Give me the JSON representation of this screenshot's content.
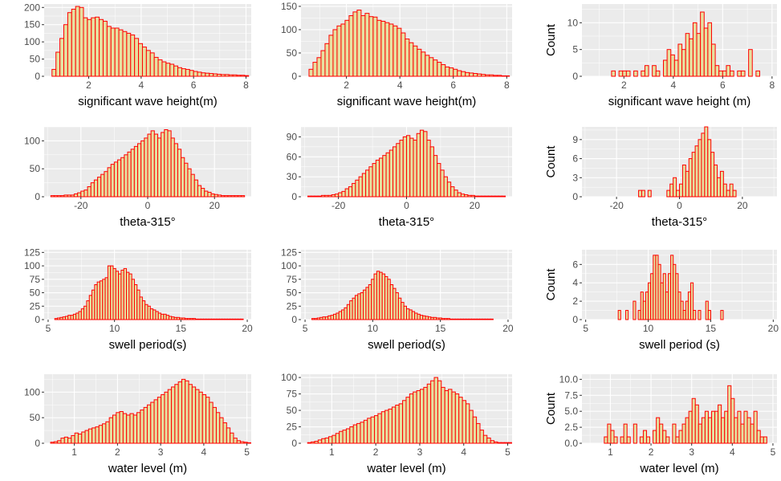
{
  "style": {
    "panel_bg": "#ebebeb",
    "grid_color": "#ffffff",
    "bar_fill": "#e6e0a0",
    "bar_stroke": "#ff0000",
    "tick_color": "#333333"
  },
  "chart_data": [
    {
      "type": "bar",
      "xlabel": "significant wave height(m)",
      "ylabel": "",
      "xlim": [
        0.3,
        8.2
      ],
      "ylim": [
        0,
        210
      ],
      "xticks": [
        2,
        4,
        6,
        8
      ],
      "yticks": [
        0,
        50,
        100,
        150,
        200
      ],
      "bin_start": 0.6,
      "bin_width": 0.15,
      "values": [
        20,
        70,
        110,
        150,
        185,
        195,
        203,
        200,
        170,
        165,
        170,
        172,
        165,
        160,
        145,
        140,
        140,
        135,
        130,
        125,
        120,
        110,
        95,
        85,
        75,
        68,
        55,
        48,
        42,
        38,
        35,
        30,
        25,
        22,
        20,
        17,
        14,
        12,
        10,
        9,
        8,
        7,
        6,
        5,
        5,
        4,
        4,
        3,
        3,
        2,
        2
      ]
    },
    {
      "type": "bar",
      "xlabel": "significant wave height(m)",
      "ylabel": "",
      "xlim": [
        0.3,
        8.2
      ],
      "ylim": [
        0,
        155
      ],
      "xticks": [
        2,
        4,
        6,
        8
      ],
      "yticks": [
        0,
        50,
        100,
        150
      ],
      "bin_start": 0.6,
      "bin_width": 0.15,
      "values": [
        15,
        30,
        40,
        55,
        70,
        88,
        100,
        108,
        112,
        120,
        130,
        138,
        142,
        130,
        135,
        128,
        127,
        120,
        118,
        115,
        112,
        108,
        103,
        93,
        80,
        72,
        65,
        58,
        52,
        45,
        40,
        35,
        30,
        25,
        20,
        18,
        15,
        12,
        10,
        8,
        7,
        6,
        5,
        4,
        3,
        3,
        2,
        2,
        1,
        1,
        1,
        1,
        1,
        1,
        1,
        1,
        1,
        1,
        1,
        1,
        1,
        1,
        4,
        1,
        1,
        1,
        1,
        1,
        1,
        1,
        1,
        1,
        1,
        1
      ]
    },
    {
      "type": "bar",
      "xlabel": "significant wave height (m)",
      "ylabel": "Count",
      "xlim": [
        0.3,
        8.2
      ],
      "ylim": [
        0,
        13.5
      ],
      "xticks": [
        2,
        4,
        6,
        8
      ],
      "yticks": [
        0,
        5,
        10
      ],
      "bin_start": 1.5,
      "bin_width": 0.15,
      "values": [
        1,
        0,
        1,
        1,
        1,
        0,
        1,
        0,
        1,
        2,
        0,
        2,
        1,
        0,
        3,
        5,
        4,
        3,
        6,
        5,
        8,
        7,
        10,
        8,
        12,
        9,
        10,
        6,
        2,
        1,
        1,
        2,
        1,
        0,
        1,
        1,
        0,
        5,
        0,
        1,
        0,
        0,
        0,
        0,
        0,
        0,
        0,
        0
      ]
    },
    {
      "type": "bar",
      "xlabel": "theta-315°",
      "ylabel": "",
      "xlim": [
        -31,
        31
      ],
      "ylim": [
        0,
        125
      ],
      "xticks": [
        -20,
        0,
        20
      ],
      "yticks": [
        0,
        50,
        100
      ],
      "bin_start": -29,
      "bin_width": 1,
      "values": [
        2,
        2,
        2,
        2,
        3,
        3,
        3,
        5,
        7,
        10,
        12,
        18,
        25,
        30,
        35,
        40,
        45,
        52,
        58,
        62,
        66,
        70,
        75,
        80,
        85,
        90,
        95,
        100,
        105,
        112,
        118,
        112,
        105,
        115,
        120,
        118,
        105,
        95,
        85,
        70,
        60,
        50,
        40,
        30,
        20,
        15,
        10,
        8,
        5,
        4,
        3,
        2,
        2,
        2,
        2,
        2,
        2,
        2
      ]
    },
    {
      "type": "bar",
      "xlabel": "theta-315°",
      "ylabel": "",
      "xlim": [
        -31,
        31
      ],
      "ylim": [
        0,
        105
      ],
      "xticks": [
        -20,
        0,
        20
      ],
      "yticks": [
        0,
        30,
        60,
        90
      ],
      "bin_start": -29,
      "bin_width": 1,
      "values": [
        1,
        1,
        1,
        1,
        2,
        2,
        2,
        3,
        4,
        6,
        8,
        12,
        15,
        20,
        25,
        30,
        35,
        40,
        45,
        50,
        55,
        58,
        62,
        66,
        70,
        75,
        80,
        85,
        90,
        92,
        88,
        85,
        95,
        100,
        98,
        85,
        75,
        62,
        50,
        40,
        30,
        22,
        15,
        10,
        6,
        4,
        3,
        2,
        2,
        1,
        1,
        1,
        1,
        1,
        1,
        1,
        1,
        1
      ]
    },
    {
      "type": "bar",
      "xlabel": "theta-315°",
      "ylabel": "Count",
      "xlim": [
        -31,
        31
      ],
      "ylim": [
        0,
        11
      ],
      "xticks": [
        -20,
        0,
        20
      ],
      "yticks": [
        0,
        3,
        6,
        9
      ],
      "bin_start": -29,
      "bin_width": 1,
      "values": [
        0,
        0,
        0,
        0,
        0,
        0,
        0,
        0,
        0,
        0,
        0,
        0,
        0,
        0,
        0,
        0,
        1,
        1,
        0,
        1,
        0,
        0,
        0,
        0,
        0,
        1,
        2,
        3,
        1,
        2,
        5,
        4,
        6,
        7,
        8,
        9,
        10,
        11,
        9,
        7,
        5,
        3,
        4,
        2,
        1,
        2,
        1,
        0,
        0,
        0,
        0,
        0,
        0,
        0,
        0,
        0,
        0,
        0
      ]
    },
    {
      "type": "bar",
      "xlabel": "swell period(s)",
      "ylabel": "",
      "xlim": [
        4.7,
        20.3
      ],
      "ylim": [
        0,
        130
      ],
      "xticks": [
        5,
        10,
        15,
        20
      ],
      "yticks": [
        0,
        25,
        50,
        75,
        100,
        125
      ],
      "bin_start": 5.5,
      "bin_width": 0.2,
      "values": [
        2,
        3,
        4,
        5,
        6,
        8,
        8,
        10,
        12,
        15,
        20,
        25,
        35,
        45,
        55,
        65,
        70,
        72,
        75,
        78,
        100,
        100,
        95,
        90,
        85,
        92,
        95,
        88,
        85,
        75,
        65,
        55,
        42,
        35,
        28,
        25,
        20,
        18,
        15,
        12,
        10,
        10,
        8,
        6,
        5,
        4,
        4,
        3,
        3,
        2,
        2,
        2,
        2,
        1,
        1,
        1,
        1,
        1,
        1,
        1,
        1,
        1,
        1,
        1,
        1,
        1,
        1,
        1,
        1,
        1,
        1
      ]
    },
    {
      "type": "bar",
      "xlabel": "swell period(s)",
      "ylabel": "",
      "xlim": [
        4.7,
        20.3
      ],
      "ylim": [
        0,
        130
      ],
      "xticks": [
        5,
        10,
        15,
        20
      ],
      "yticks": [
        0,
        25,
        50,
        75,
        100,
        125
      ],
      "bin_start": 5.5,
      "bin_width": 0.2,
      "values": [
        2,
        2,
        3,
        4,
        5,
        5,
        7,
        8,
        10,
        12,
        15,
        18,
        22,
        28,
        35,
        40,
        45,
        48,
        50,
        55,
        60,
        65,
        75,
        85,
        90,
        88,
        85,
        80,
        75,
        65,
        58,
        50,
        40,
        32,
        25,
        20,
        18,
        15,
        12,
        10,
        8,
        7,
        6,
        5,
        4,
        4,
        3,
        3,
        2,
        2,
        2,
        1,
        1,
        1,
        1,
        1,
        1,
        1,
        1,
        1,
        1,
        1,
        1,
        1,
        1,
        1,
        1
      ]
    },
    {
      "type": "bar",
      "xlabel": "swell period (s)",
      "ylabel": "Count",
      "xlim": [
        4.7,
        20.3
      ],
      "ylim": [
        0,
        7.6
      ],
      "xticks": [
        5,
        10,
        15,
        20
      ],
      "yticks": [
        0,
        2,
        4,
        6
      ],
      "bin_start": 7.0,
      "bin_width": 0.2,
      "values": [
        0,
        0,
        0,
        1,
        0,
        0,
        1,
        0,
        0,
        2,
        0,
        1,
        3,
        2,
        3,
        4,
        5,
        7,
        7,
        6,
        4,
        5,
        3,
        5,
        7,
        6,
        5,
        3,
        2,
        1,
        2,
        3,
        4,
        1,
        0,
        1,
        0,
        0,
        2,
        1,
        0,
        0,
        0,
        0,
        1,
        0,
        0,
        0,
        0,
        0
      ]
    },
    {
      "type": "bar",
      "xlabel": "water level (m)",
      "ylabel": "",
      "xlim": [
        0.3,
        5.1
      ],
      "ylim": [
        0,
        135
      ],
      "xticks": [
        1,
        2,
        3,
        4,
        5
      ],
      "yticks": [
        0,
        50,
        100
      ],
      "bin_start": 0.45,
      "bin_width": 0.08,
      "values": [
        2,
        3,
        5,
        10,
        12,
        10,
        15,
        20,
        18,
        22,
        25,
        28,
        30,
        32,
        35,
        38,
        42,
        50,
        55,
        60,
        62,
        58,
        55,
        58,
        55,
        60,
        65,
        70,
        75,
        80,
        85,
        90,
        95,
        100,
        105,
        110,
        115,
        120,
        125,
        122,
        115,
        110,
        105,
        100,
        95,
        90,
        80,
        70,
        60,
        50,
        40,
        30,
        20,
        10,
        5,
        3,
        2,
        1,
        1
      ]
    },
    {
      "type": "bar",
      "xlabel": "water level (m)",
      "ylabel": "",
      "xlim": [
        0.3,
        5.1
      ],
      "ylim": [
        0,
        105
      ],
      "xticks": [
        1,
        2,
        3,
        4,
        5
      ],
      "yticks": [
        0,
        25,
        50,
        75,
        100
      ],
      "bin_start": 0.45,
      "bin_width": 0.08,
      "values": [
        1,
        2,
        3,
        5,
        7,
        8,
        10,
        12,
        15,
        18,
        20,
        22,
        25,
        28,
        30,
        32,
        35,
        38,
        40,
        42,
        45,
        48,
        50,
        52,
        55,
        58,
        60,
        65,
        70,
        75,
        78,
        80,
        82,
        85,
        90,
        95,
        100,
        95,
        85,
        80,
        82,
        78,
        75,
        70,
        65,
        60,
        50,
        40,
        30,
        20,
        12,
        8,
        4,
        2,
        1,
        1,
        1,
        1,
        1
      ]
    },
    {
      "type": "bar",
      "xlabel": "water level (m)",
      "ylabel": "Count",
      "xlim": [
        0.3,
        5.1
      ],
      "ylim": [
        0,
        10.8
      ],
      "xticks": [
        1,
        2,
        3,
        4,
        5
      ],
      "yticks": [
        0.0,
        2.5,
        5.0,
        7.5,
        10.0
      ],
      "yticks_fmt": 1,
      "bin_start": 0.45,
      "bin_width": 0.08,
      "values": [
        0,
        0,
        0,
        0,
        0,
        1,
        3,
        2,
        1,
        0,
        1,
        3,
        1,
        0,
        3,
        0,
        1,
        2,
        1,
        0,
        2,
        4,
        3,
        2,
        1,
        0,
        3,
        1,
        2,
        3,
        4,
        5,
        7,
        6,
        3,
        4,
        5,
        4,
        5,
        5,
        6,
        4,
        5,
        9,
        7,
        4,
        5,
        3,
        5,
        4,
        3,
        5,
        2,
        1,
        1,
        0,
        0,
        0,
        0
      ]
    }
  ]
}
